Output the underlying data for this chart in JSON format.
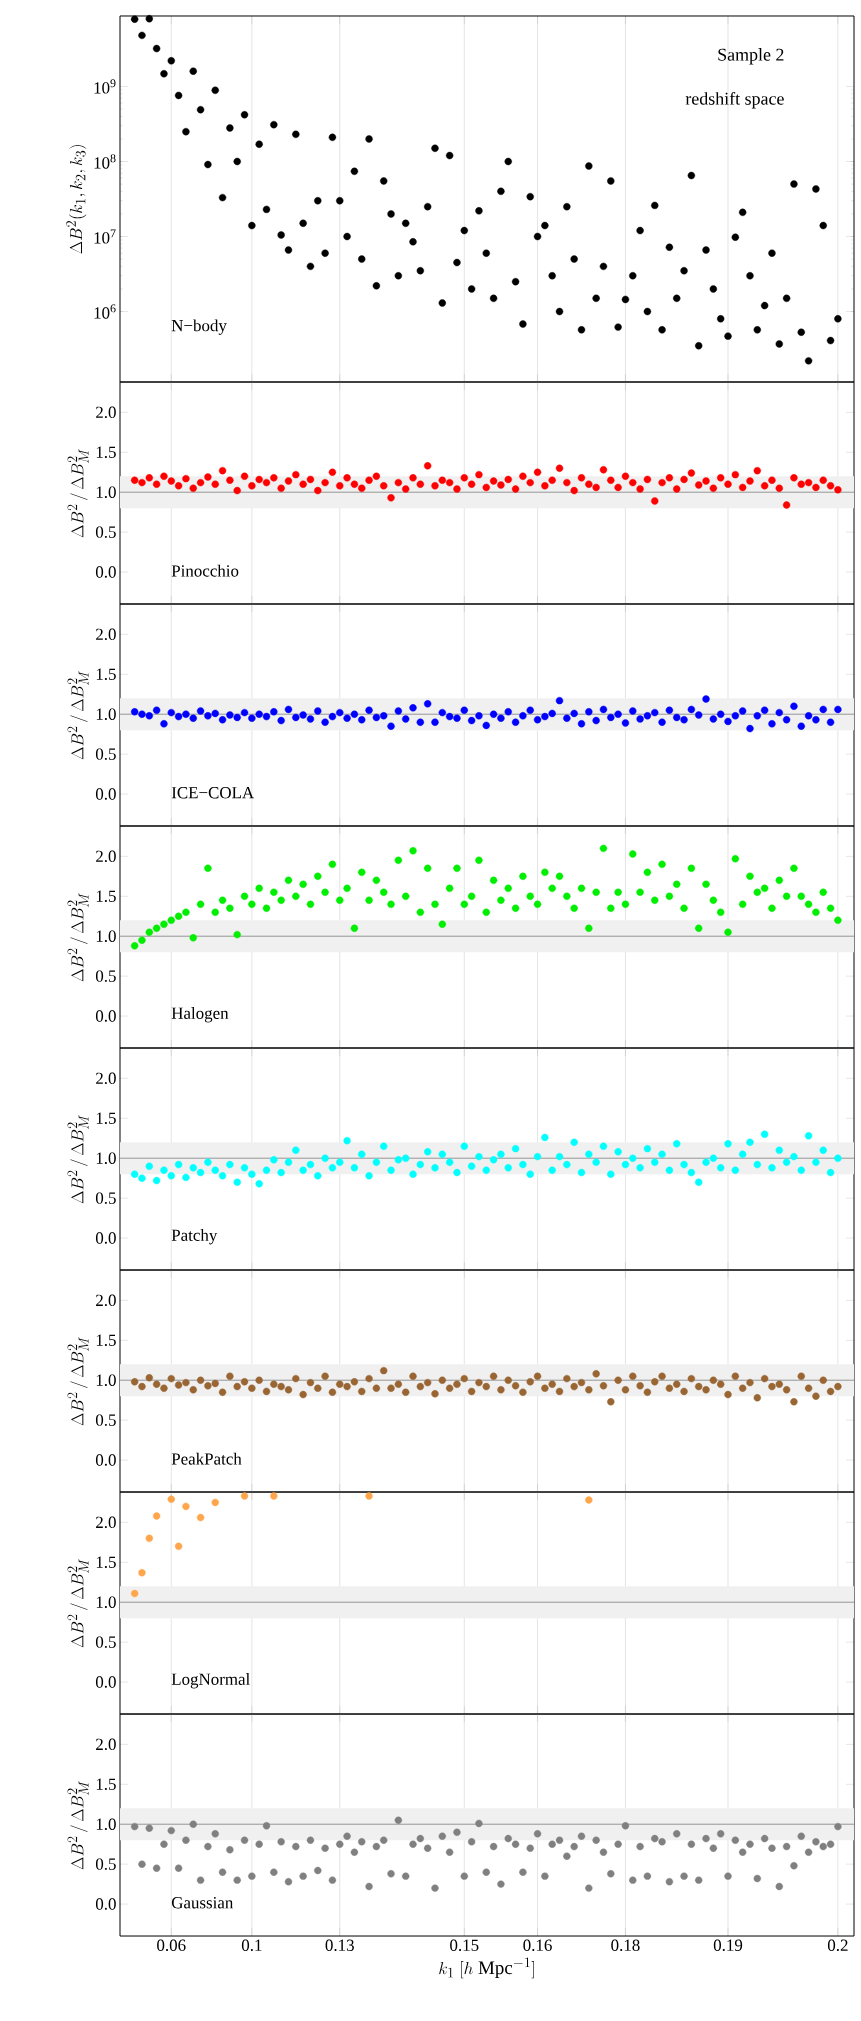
{
  "chart_data": [
    {
      "type": "scatter",
      "ylabel": "\\Delta B^{2}(k_{1},k_{2},k_{3})",
      "annotations": [
        "Sample 2",
        "redshift space"
      ],
      "log": "y",
      "grid": "x",
      "tick_labels": "y",
      "categories": [
        null,
        null,
        null,
        null,
        null,
        "0.06",
        null,
        null,
        null,
        null,
        null,
        null,
        null,
        null,
        null,
        null,
        "0.1",
        null,
        null,
        null,
        null,
        null,
        null,
        null,
        null,
        null,
        null,
        null,
        "0.13",
        null,
        null,
        null,
        null,
        null,
        null,
        null,
        null,
        null,
        null,
        null,
        null,
        null,
        null,
        null,
        null,
        "0.15",
        null,
        null,
        null,
        null,
        null,
        null,
        null,
        null,
        null,
        "0.16",
        null,
        null,
        null,
        null,
        null,
        null,
        null,
        null,
        null,
        null,
        null,
        "0.18",
        null,
        null,
        null,
        null,
        null,
        null,
        null,
        null,
        null,
        null,
        null,
        null,
        null,
        "0.19",
        null,
        null,
        null,
        null,
        null,
        null,
        null,
        null,
        null,
        null,
        null,
        null,
        null,
        null,
        "0.2"
      ],
      "ylim": [
        115000,
        8700000000
      ],
      "yticks": [
        {
          "value": 1000000,
          "label": "10$^{6}$"
        },
        {
          "value": 10000000,
          "label": "10$^{7}$"
        },
        {
          "value": 100000000,
          "label": "10$^{8}$"
        },
        {
          "value": 1000000000,
          "label": "10$^{9}$"
        }
      ],
      "series": [
        {
          "name": "N−body",
          "color": "#000000",
          "values": [
            7900000000.0,
            4800000000.0,
            8000000000.0,
            3200000000.0,
            1480000000.0,
            2200000000.0,
            760000000.0,
            250000000.0,
            1600000000.0,
            490000000.0,
            91000000.0,
            890000000.0,
            33000000.0,
            280000000.0,
            100000000.0,
            420000000.0,
            14000000.0,
            170000000.0,
            23000000.0,
            310000000.0,
            10500000.0,
            6600000.0,
            230000000.0,
            15000000.0,
            4000000.0,
            30000000.0,
            6000000.0,
            210000000.0,
            30000000.0,
            10000000.0,
            74000000.0,
            5000000.0,
            200000000.0,
            2200000.0,
            55000000.0,
            20000000.0,
            3000000.0,
            15000000.0,
            8500000.0,
            3500000.0,
            25000000.0,
            150000000.0,
            1300000.0,
            120000000.0,
            4500000.0,
            12000000.0,
            2000000.0,
            22000000.0,
            6000000.0,
            1500000.0,
            40000000.0,
            100000000.0,
            2500000.0,
            680000.0,
            34000000.0,
            10000000.0,
            14000000.0,
            3000000.0,
            1000000.0,
            25000000.0,
            5000000.0,
            570000.0,
            87000000.0,
            1500000.0,
            4000000.0,
            55000000.0,
            620000.0,
            1450000.0,
            3000000.0,
            12000000.0,
            1000000.0,
            26000000.0,
            570000.0,
            7200000.0,
            1500000.0,
            3500000.0,
            65000000.0,
            350000.0,
            6600000.0,
            2000000.0,
            800000.0,
            470000.0,
            9800000.0,
            21000000.0,
            3000000.0,
            570000.0,
            1200000.0,
            6000000.0,
            370000.0,
            1500000.0,
            50000000.0,
            530000.0,
            220000.0,
            43000000.0,
            14000000.0,
            410000.0,
            800000.0
          ]
        }
      ]
    },
    {
      "type": "scatter",
      "ylabel": "\\Delta B^{2}\\,/\\,\\Delta B^{2}_{M}",
      "grid": "x",
      "tick_labels": "y",
      "categories": [
        null,
        null,
        null,
        null,
        null,
        "0.06",
        null,
        null,
        null,
        null,
        null,
        null,
        null,
        null,
        null,
        null,
        "0.1",
        null,
        null,
        null,
        null,
        null,
        null,
        null,
        null,
        null,
        null,
        null,
        "0.13",
        null,
        null,
        null,
        null,
        null,
        null,
        null,
        null,
        null,
        null,
        null,
        null,
        null,
        null,
        null,
        null,
        "0.15",
        null,
        null,
        null,
        null,
        null,
        null,
        null,
        null,
        null,
        "0.16",
        null,
        null,
        null,
        null,
        null,
        null,
        null,
        null,
        null,
        null,
        null,
        "0.18",
        null,
        null,
        null,
        null,
        null,
        null,
        null,
        null,
        null,
        null,
        null,
        null,
        null,
        "0.19",
        null,
        null,
        null,
        null,
        null,
        null,
        null,
        null,
        null,
        null,
        null,
        null,
        null,
        null,
        "0.2"
      ],
      "ylim": [
        -0.4,
        2.38
      ],
      "yticks": [
        {
          "value": 0,
          "label": "0.0"
        },
        {
          "value": 0.5,
          "label": "0.5"
        },
        {
          "value": 1,
          "label": "1.0"
        },
        {
          "value": 1.5,
          "label": "1.5"
        },
        {
          "value": 2,
          "label": "2.0"
        }
      ],
      "ref_lines": [
        {
          "axis": "y",
          "value": 1,
          "color": "#808080"
        }
      ],
      "bands": [
        {
          "axis": "y",
          "from": 0.8,
          "to": 1.2,
          "color": "#f0f0f0"
        }
      ],
      "series": [
        {
          "name": "Pinocchio",
          "color": "#ff0000",
          "values": [
            1.15,
            1.12,
            1.18,
            1.1,
            1.2,
            1.14,
            1.08,
            1.17,
            1.05,
            1.12,
            1.19,
            1.1,
            1.27,
            1.15,
            1.02,
            1.2,
            1.08,
            1.16,
            1.12,
            1.18,
            1.05,
            1.14,
            1.22,
            1.1,
            1.16,
            1.02,
            1.12,
            1.25,
            1.08,
            1.18,
            1.1,
            1.05,
            1.15,
            1.2,
            1.08,
            0.93,
            1.12,
            1.04,
            1.18,
            1.1,
            1.33,
            1.08,
            1.15,
            1.12,
            1.04,
            1.18,
            1.1,
            1.22,
            1.06,
            1.14,
            1.09,
            1.16,
            1.04,
            1.2,
            1.12,
            1.25,
            1.08,
            1.15,
            1.3,
            1.12,
            1.02,
            1.18,
            1.1,
            1.06,
            1.28,
            1.15,
            1.06,
            1.2,
            1.12,
            1.04,
            1.16,
            0.89,
            1.12,
            1.18,
            1.04,
            1.16,
            1.24,
            1.09,
            1.14,
            1.05,
            1.18,
            1.1,
            1.22,
            1.06,
            1.14,
            1.27,
            1.08,
            1.15,
            1.05,
            0.84,
            1.18,
            1.1,
            1.12,
            1.06,
            1.15,
            1.08,
            1.03
          ]
        }
      ]
    },
    {
      "type": "scatter",
      "ylabel": "\\Delta B^{2}\\,/\\,\\Delta B^{2}_{M}",
      "grid": "x",
      "tick_labels": "y",
      "categories": [
        null,
        null,
        null,
        null,
        null,
        "0.06",
        null,
        null,
        null,
        null,
        null,
        null,
        null,
        null,
        null,
        null,
        "0.1",
        null,
        null,
        null,
        null,
        null,
        null,
        null,
        null,
        null,
        null,
        null,
        "0.13",
        null,
        null,
        null,
        null,
        null,
        null,
        null,
        null,
        null,
        null,
        null,
        null,
        null,
        null,
        null,
        null,
        "0.15",
        null,
        null,
        null,
        null,
        null,
        null,
        null,
        null,
        null,
        "0.16",
        null,
        null,
        null,
        null,
        null,
        null,
        null,
        null,
        null,
        null,
        null,
        "0.18",
        null,
        null,
        null,
        null,
        null,
        null,
        null,
        null,
        null,
        null,
        null,
        null,
        null,
        "0.19",
        null,
        null,
        null,
        null,
        null,
        null,
        null,
        null,
        null,
        null,
        null,
        null,
        null,
        null,
        "0.2"
      ],
      "ylim": [
        -0.4,
        2.38
      ],
      "yticks": [
        {
          "value": 0,
          "label": "0.0"
        },
        {
          "value": 0.5,
          "label": "0.5"
        },
        {
          "value": 1,
          "label": "1.0"
        },
        {
          "value": 1.5,
          "label": "1.5"
        },
        {
          "value": 2,
          "label": "2.0"
        }
      ],
      "ref_lines": [
        {
          "axis": "y",
          "value": 1,
          "color": "#808080"
        }
      ],
      "bands": [
        {
          "axis": "y",
          "from": 0.8,
          "to": 1.2,
          "color": "#f0f0f0"
        }
      ],
      "series": [
        {
          "name": "ICE−COLA",
          "color": "#0000ff",
          "values": [
            1.03,
            1.0,
            0.98,
            1.05,
            0.88,
            1.02,
            0.97,
            1.0,
            0.95,
            1.04,
            0.98,
            1.01,
            0.93,
            0.99,
            0.96,
            1.02,
            0.95,
            1.0,
            0.97,
            1.03,
            0.92,
            1.06,
            0.96,
            0.99,
            0.94,
            1.04,
            0.9,
            0.97,
            1.02,
            0.95,
            1.0,
            0.93,
            1.05,
            0.96,
            0.98,
            0.85,
            1.04,
            0.94,
            1.08,
            0.9,
            1.13,
            0.9,
            1.02,
            0.97,
            0.95,
            1.05,
            0.92,
            0.98,
            0.86,
            1.0,
            0.95,
            1.03,
            0.9,
            0.98,
            1.05,
            0.93,
            0.97,
            1.01,
            1.17,
            0.95,
            1.01,
            0.88,
            1.03,
            0.92,
            1.06,
            0.96,
            1.0,
            0.89,
            1.04,
            0.94,
            0.98,
            1.02,
            0.9,
            1.05,
            0.96,
            0.93,
            1.06,
            0.99,
            1.19,
            0.94,
            1.0,
            0.91,
            0.98,
            1.04,
            0.82,
            0.98,
            1.05,
            0.88,
            1.02,
            0.93,
            1.1,
            0.85,
            0.98,
            0.93,
            1.06,
            0.9,
            1.06
          ]
        }
      ]
    },
    {
      "type": "scatter",
      "ylabel": "\\Delta B^{2}\\,/\\,\\Delta B^{2}_{M}",
      "grid": "x",
      "tick_labels": "y",
      "categories": [
        null,
        null,
        null,
        null,
        null,
        "0.06",
        null,
        null,
        null,
        null,
        null,
        null,
        null,
        null,
        null,
        null,
        "0.1",
        null,
        null,
        null,
        null,
        null,
        null,
        null,
        null,
        null,
        null,
        null,
        "0.13",
        null,
        null,
        null,
        null,
        null,
        null,
        null,
        null,
        null,
        null,
        null,
        null,
        null,
        null,
        null,
        null,
        "0.15",
        null,
        null,
        null,
        null,
        null,
        null,
        null,
        null,
        null,
        "0.16",
        null,
        null,
        null,
        null,
        null,
        null,
        null,
        null,
        null,
        null,
        null,
        "0.18",
        null,
        null,
        null,
        null,
        null,
        null,
        null,
        null,
        null,
        null,
        null,
        null,
        null,
        "0.19",
        null,
        null,
        null,
        null,
        null,
        null,
        null,
        null,
        null,
        null,
        null,
        null,
        null,
        null,
        "0.2"
      ],
      "ylim": [
        -0.4,
        2.38
      ],
      "yticks": [
        {
          "value": 0,
          "label": "0.0"
        },
        {
          "value": 0.5,
          "label": "0.5"
        },
        {
          "value": 1,
          "label": "1.0"
        },
        {
          "value": 1.5,
          "label": "1.5"
        },
        {
          "value": 2,
          "label": "2.0"
        }
      ],
      "ref_lines": [
        {
          "axis": "y",
          "value": 1,
          "color": "#808080"
        }
      ],
      "bands": [
        {
          "axis": "y",
          "from": 0.8,
          "to": 1.2,
          "color": "#f0f0f0"
        }
      ],
      "series": [
        {
          "name": "Halogen",
          "color": "#00ee00",
          "values": [
            0.88,
            0.95,
            1.05,
            1.1,
            1.15,
            1.2,
            1.25,
            1.3,
            0.98,
            1.4,
            1.85,
            1.3,
            1.45,
            1.35,
            1.02,
            1.5,
            1.4,
            1.6,
            1.35,
            1.55,
            1.45,
            1.7,
            1.5,
            1.65,
            1.4,
            1.75,
            1.55,
            1.9,
            1.45,
            1.6,
            1.1,
            1.8,
            1.45,
            1.7,
            1.55,
            1.4,
            1.95,
            1.5,
            2.07,
            1.3,
            1.85,
            1.4,
            1.15,
            1.6,
            1.85,
            1.4,
            1.5,
            1.95,
            1.3,
            1.7,
            1.45,
            1.6,
            1.35,
            1.75,
            1.5,
            1.4,
            1.8,
            1.6,
            1.75,
            1.5,
            1.35,
            1.6,
            1.1,
            1.55,
            2.1,
            1.35,
            1.55,
            1.4,
            2.03,
            1.55,
            1.8,
            1.45,
            1.9,
            1.5,
            1.65,
            1.35,
            1.85,
            1.1,
            1.65,
            1.45,
            1.3,
            1.05,
            1.97,
            1.4,
            1.75,
            1.55,
            1.6,
            1.35,
            1.7,
            1.5,
            1.85,
            1.5,
            1.4,
            1.3,
            1.55,
            1.35,
            1.2
          ]
        }
      ]
    },
    {
      "type": "scatter",
      "ylabel": "\\Delta B^{2}\\,/\\,\\Delta B^{2}_{M}",
      "grid": "x",
      "tick_labels": "y",
      "categories": [
        null,
        null,
        null,
        null,
        null,
        "0.06",
        null,
        null,
        null,
        null,
        null,
        null,
        null,
        null,
        null,
        null,
        "0.1",
        null,
        null,
        null,
        null,
        null,
        null,
        null,
        null,
        null,
        null,
        null,
        "0.13",
        null,
        null,
        null,
        null,
        null,
        null,
        null,
        null,
        null,
        null,
        null,
        null,
        null,
        null,
        null,
        null,
        "0.15",
        null,
        null,
        null,
        null,
        null,
        null,
        null,
        null,
        null,
        "0.16",
        null,
        null,
        null,
        null,
        null,
        null,
        null,
        null,
        null,
        null,
        null,
        "0.18",
        null,
        null,
        null,
        null,
        null,
        null,
        null,
        null,
        null,
        null,
        null,
        null,
        null,
        "0.19",
        null,
        null,
        null,
        null,
        null,
        null,
        null,
        null,
        null,
        null,
        null,
        null,
        null,
        null,
        "0.2"
      ],
      "ylim": [
        -0.4,
        2.38
      ],
      "yticks": [
        {
          "value": 0,
          "label": "0.0"
        },
        {
          "value": 0.5,
          "label": "0.5"
        },
        {
          "value": 1,
          "label": "1.0"
        },
        {
          "value": 1.5,
          "label": "1.5"
        },
        {
          "value": 2,
          "label": "2.0"
        }
      ],
      "ref_lines": [
        {
          "axis": "y",
          "value": 1,
          "color": "#808080"
        }
      ],
      "bands": [
        {
          "axis": "y",
          "from": 0.8,
          "to": 1.2,
          "color": "#f0f0f0"
        }
      ],
      "series": [
        {
          "name": "Patchy",
          "color": "#00ffff",
          "values": [
            0.8,
            0.75,
            0.9,
            0.72,
            0.85,
            0.78,
            0.92,
            0.76,
            0.88,
            0.82,
            0.95,
            0.85,
            0.78,
            0.92,
            0.7,
            0.88,
            0.8,
            0.68,
            0.85,
            0.98,
            0.82,
            0.95,
            1.1,
            0.85,
            0.92,
            0.78,
            1.0,
            0.88,
            0.95,
            1.22,
            0.88,
            1.05,
            0.78,
            0.95,
            1.15,
            0.85,
            0.98,
            1.0,
            0.8,
            0.92,
            1.08,
            0.88,
            1.05,
            0.95,
            0.82,
            1.15,
            0.9,
            1.02,
            0.85,
            0.98,
            1.05,
            0.88,
            1.12,
            0.92,
            0.8,
            1.02,
            1.26,
            0.85,
            1.02,
            0.92,
            1.2,
            0.82,
            1.05,
            0.95,
            1.15,
            0.8,
            1.08,
            0.92,
            1.0,
            0.88,
            1.12,
            0.95,
            1.05,
            0.85,
            1.18,
            0.92,
            0.82,
            0.7,
            0.95,
            1.0,
            0.88,
            1.18,
            0.85,
            1.05,
            1.2,
            0.92,
            1.3,
            0.88,
            1.1,
            0.95,
            1.02,
            0.85,
            1.28,
            0.95,
            1.1,
            0.82,
            1.0
          ]
        }
      ]
    },
    {
      "type": "scatter",
      "ylabel": "\\Delta B^{2}\\,/\\,\\Delta B^{2}_{M}",
      "grid": "x",
      "tick_labels": "y",
      "categories": [
        null,
        null,
        null,
        null,
        null,
        "0.06",
        null,
        null,
        null,
        null,
        null,
        null,
        null,
        null,
        null,
        null,
        "0.1",
        null,
        null,
        null,
        null,
        null,
        null,
        null,
        null,
        null,
        null,
        null,
        "0.13",
        null,
        null,
        null,
        null,
        null,
        null,
        null,
        null,
        null,
        null,
        null,
        null,
        null,
        null,
        null,
        null,
        "0.15",
        null,
        null,
        null,
        null,
        null,
        null,
        null,
        null,
        null,
        "0.16",
        null,
        null,
        null,
        null,
        null,
        null,
        null,
        null,
        null,
        null,
        null,
        "0.18",
        null,
        null,
        null,
        null,
        null,
        null,
        null,
        null,
        null,
        null,
        null,
        null,
        null,
        "0.19",
        null,
        null,
        null,
        null,
        null,
        null,
        null,
        null,
        null,
        null,
        null,
        null,
        null,
        null,
        "0.2"
      ],
      "ylim": [
        -0.4,
        2.38
      ],
      "yticks": [
        {
          "value": 0,
          "label": "0.0"
        },
        {
          "value": 0.5,
          "label": "0.5"
        },
        {
          "value": 1,
          "label": "1.0"
        },
        {
          "value": 1.5,
          "label": "1.5"
        },
        {
          "value": 2,
          "label": "2.0"
        }
      ],
      "ref_lines": [
        {
          "axis": "y",
          "value": 1,
          "color": "#808080"
        }
      ],
      "bands": [
        {
          "axis": "y",
          "from": 0.8,
          "to": 1.2,
          "color": "#f0f0f0"
        }
      ],
      "series": [
        {
          "name": "PeakPatch",
          "color": "#996633",
          "values": [
            0.98,
            0.92,
            1.03,
            0.95,
            0.9,
            1.02,
            0.94,
            0.97,
            0.88,
            1.0,
            0.93,
            0.96,
            0.85,
            1.05,
            0.92,
            0.98,
            0.9,
            1.0,
            0.86,
            0.95,
            0.92,
            0.88,
            1.02,
            0.82,
            0.97,
            0.9,
            1.05,
            0.85,
            0.95,
            0.92,
            0.98,
            0.86,
            1.02,
            0.9,
            1.12,
            0.9,
            0.95,
            0.85,
            1.05,
            0.92,
            0.97,
            0.83,
            1.0,
            0.9,
            0.95,
            1.02,
            0.86,
            0.97,
            0.92,
            1.05,
            0.88,
            1.0,
            0.93,
            0.85,
            0.98,
            1.05,
            0.9,
            0.95,
            0.86,
            1.02,
            0.92,
            0.97,
            0.88,
            1.08,
            0.93,
            0.73,
            1.0,
            0.88,
            1.05,
            0.93,
            0.85,
            0.98,
            1.05,
            0.9,
            0.95,
            0.86,
            1.02,
            0.92,
            0.88,
            1.0,
            0.95,
            0.82,
            1.05,
            0.9,
            0.97,
            0.78,
            1.02,
            0.92,
            0.95,
            0.88,
            0.73,
            1.05,
            0.9,
            0.8,
            1.0,
            0.86,
            0.92
          ]
        }
      ]
    },
    {
      "type": "scatter",
      "ylabel": "\\Delta B^{2}\\,/\\,\\Delta B^{2}_{M}",
      "grid": "x",
      "tick_labels": "y",
      "categories": [
        null,
        null,
        null,
        null,
        null,
        "0.06",
        null,
        null,
        null,
        null,
        null,
        null,
        null,
        null,
        null,
        null,
        "0.1",
        null,
        null,
        null,
        null,
        null,
        null,
        null,
        null,
        null,
        null,
        null,
        "0.13",
        null,
        null,
        null,
        null,
        null,
        null,
        null,
        null,
        null,
        null,
        null,
        null,
        null,
        null,
        null,
        null,
        "0.15",
        null,
        null,
        null,
        null,
        null,
        null,
        null,
        null,
        null,
        "0.16",
        null,
        null,
        null,
        null,
        null,
        null,
        null,
        null,
        null,
        null,
        null,
        "0.18",
        null,
        null,
        null,
        null,
        null,
        null,
        null,
        null,
        null,
        null,
        null,
        null,
        null,
        "0.19",
        null,
        null,
        null,
        null,
        null,
        null,
        null,
        null,
        null,
        null,
        null,
        null,
        null,
        null,
        "0.2"
      ],
      "ylim": [
        -0.4,
        2.38
      ],
      "yticks": [
        {
          "value": 0,
          "label": "0.0"
        },
        {
          "value": 0.5,
          "label": "0.5"
        },
        {
          "value": 1,
          "label": "1.0"
        },
        {
          "value": 1.5,
          "label": "1.5"
        },
        {
          "value": 2,
          "label": "2.0"
        }
      ],
      "ref_lines": [
        {
          "axis": "y",
          "value": 1,
          "color": "#808080"
        }
      ],
      "bands": [
        {
          "axis": "y",
          "from": 0.8,
          "to": 1.2,
          "color": "#f0f0f0"
        }
      ],
      "series": [
        {
          "name": "LogNormal",
          "color": "#ffa64d",
          "values": [
            1.11,
            1.37,
            1.8,
            2.08,
            null,
            2.29,
            1.7,
            2.2,
            null,
            2.06,
            null,
            2.25,
            null,
            null,
            null,
            2.33,
            null,
            null,
            null,
            2.33,
            null,
            null,
            null,
            null,
            null,
            null,
            null,
            null,
            null,
            null,
            null,
            null,
            2.33,
            null,
            null,
            null,
            null,
            null,
            null,
            null,
            null,
            null,
            null,
            null,
            null,
            null,
            null,
            null,
            null,
            null,
            null,
            null,
            null,
            null,
            null,
            null,
            null,
            null,
            null,
            null,
            null,
            null,
            2.28,
            null,
            null,
            null,
            null,
            null,
            null,
            null,
            null,
            null,
            null,
            null,
            null,
            null,
            null,
            null,
            null,
            null,
            null,
            null,
            null,
            null,
            null,
            null,
            null,
            null,
            null,
            null,
            null,
            null,
            null,
            null,
            null,
            null,
            null
          ]
        }
      ]
    },
    {
      "type": "scatter",
      "ylabel": "\\Delta B^{2}\\,/\\,\\Delta B^{2}_{M}",
      "xlabel": "k_{1}\\ [h\\ \\mathrm{Mpc}^{-1}]",
      "grid": "x",
      "categories": [
        null,
        null,
        null,
        null,
        null,
        "0.06",
        null,
        null,
        null,
        null,
        null,
        null,
        null,
        null,
        null,
        null,
        "0.1",
        null,
        null,
        null,
        null,
        null,
        null,
        null,
        null,
        null,
        null,
        null,
        "0.13",
        null,
        null,
        null,
        null,
        null,
        null,
        null,
        null,
        null,
        null,
        null,
        null,
        null,
        null,
        null,
        null,
        "0.15",
        null,
        null,
        null,
        null,
        null,
        null,
        null,
        null,
        null,
        "0.16",
        null,
        null,
        null,
        null,
        null,
        null,
        null,
        null,
        null,
        null,
        null,
        "0.18",
        null,
        null,
        null,
        null,
        null,
        null,
        null,
        null,
        null,
        null,
        null,
        null,
        null,
        "0.19",
        null,
        null,
        null,
        null,
        null,
        null,
        null,
        null,
        null,
        null,
        null,
        null,
        null,
        null,
        "0.2"
      ],
      "ylim": [
        -0.4,
        2.38
      ],
      "yticks": [
        {
          "value": 0,
          "label": "0.0"
        },
        {
          "value": 0.5,
          "label": "0.5"
        },
        {
          "value": 1,
          "label": "1.0"
        },
        {
          "value": 1.5,
          "label": "1.5"
        },
        {
          "value": 2,
          "label": "2.0"
        }
      ],
      "ref_lines": [
        {
          "axis": "y",
          "value": 1,
          "color": "#808080"
        }
      ],
      "bands": [
        {
          "axis": "y",
          "from": 0.8,
          "to": 1.2,
          "color": "#f0f0f0"
        }
      ],
      "series": [
        {
          "name": "Gaussian",
          "color": "#808080",
          "values": [
            0.97,
            0.5,
            0.95,
            0.45,
            0.75,
            0.92,
            0.45,
            0.8,
            1.0,
            0.3,
            0.72,
            0.88,
            0.4,
            0.68,
            0.3,
            0.8,
            0.35,
            0.75,
            0.98,
            0.4,
            0.78,
            0.28,
            0.72,
            0.35,
            0.8,
            0.42,
            0.7,
            0.3,
            0.75,
            0.85,
            0.65,
            0.78,
            0.22,
            0.72,
            0.8,
            0.38,
            1.05,
            0.35,
            0.75,
            0.82,
            0.7,
            0.2,
            0.85,
            0.65,
            0.9,
            0.35,
            0.78,
            1.01,
            0.4,
            0.72,
            0.25,
            0.82,
            0.75,
            0.4,
            0.7,
            0.88,
            0.35,
            0.75,
            0.8,
            0.6,
            0.72,
            0.85,
            0.2,
            0.8,
            0.65,
            0.38,
            0.75,
            0.98,
            0.3,
            0.72,
            0.35,
            0.82,
            0.78,
            0.28,
            0.88,
            0.35,
            0.75,
            0.3,
            0.82,
            0.7,
            0.88,
            0.35,
            0.8,
            0.65,
            0.75,
            0.32,
            0.82,
            0.7,
            0.22,
            0.72,
            0.48,
            0.85,
            0.65,
            0.78,
            0.72,
            0.75,
            0.97
          ]
        }
      ]
    }
  ]
}
